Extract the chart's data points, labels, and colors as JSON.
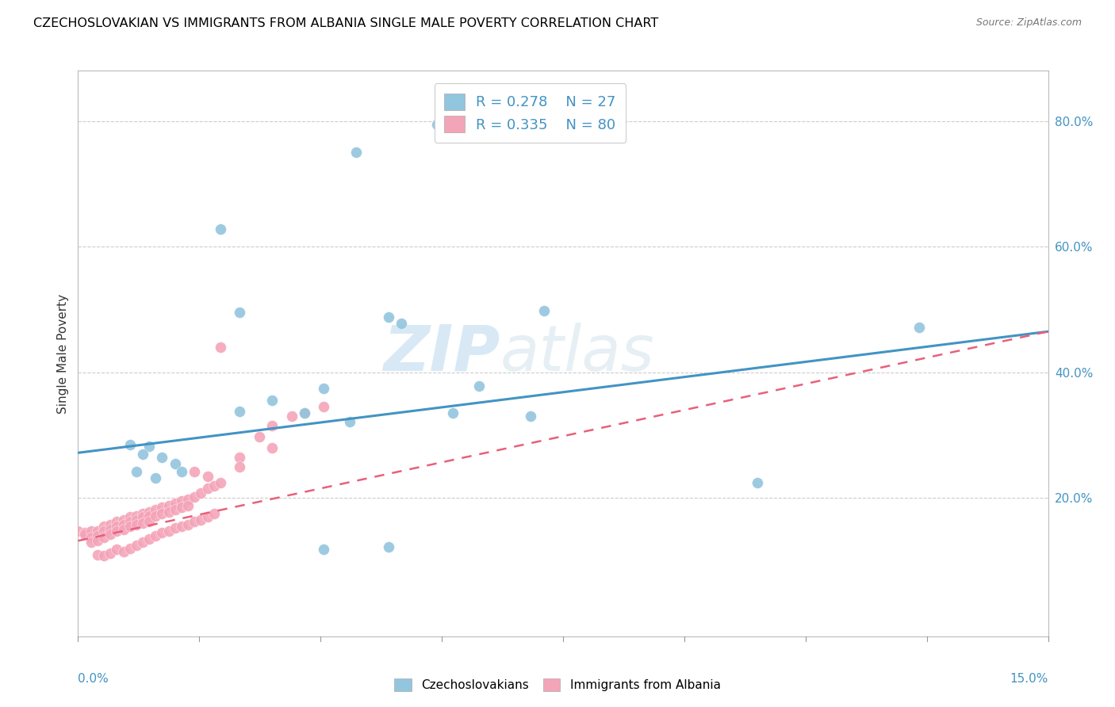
{
  "title": "CZECHOSLOVAKIAN VS IMMIGRANTS FROM ALBANIA SINGLE MALE POVERTY CORRELATION CHART",
  "source": "Source: ZipAtlas.com",
  "ylabel": "Single Male Poverty",
  "right_yticks": [
    "20.0%",
    "40.0%",
    "60.0%",
    "80.0%"
  ],
  "right_ytick_vals": [
    0.2,
    0.4,
    0.6,
    0.8
  ],
  "xmin": 0.0,
  "xmax": 0.15,
  "ymin": -0.02,
  "ymax": 0.88,
  "blue_color": "#92c5de",
  "pink_color": "#f4a4b8",
  "blue_line_color": "#4393c3",
  "pink_line_color": "#e8607a",
  "legend_label1": "Czechoslovakians",
  "legend_label2": "Immigrants from Albania",
  "watermark_zip": "ZIP",
  "watermark_atlas": "atlas",
  "blue_trend_y0": 0.272,
  "blue_trend_y1": 0.465,
  "pink_trend_y0": 0.132,
  "pink_trend_y1": 0.465,
  "blue_x": [
    0.0555,
    0.043,
    0.022,
    0.025,
    0.03,
    0.008,
    0.011,
    0.01,
    0.013,
    0.015,
    0.009,
    0.016,
    0.012,
    0.025,
    0.035,
    0.062,
    0.038,
    0.042,
    0.058,
    0.05,
    0.048,
    0.072,
    0.13,
    0.105,
    0.07,
    0.048,
    0.038
  ],
  "blue_y": [
    0.795,
    0.75,
    0.628,
    0.495,
    0.355,
    0.285,
    0.282,
    0.27,
    0.265,
    0.255,
    0.242,
    0.242,
    0.232,
    0.338,
    0.335,
    0.378,
    0.375,
    0.322,
    0.335,
    0.478,
    0.122,
    0.498,
    0.472,
    0.225,
    0.33,
    0.488,
    0.118
  ],
  "pink_x": [
    0.0,
    0.001,
    0.001,
    0.002,
    0.002,
    0.002,
    0.003,
    0.003,
    0.003,
    0.004,
    0.004,
    0.004,
    0.005,
    0.005,
    0.005,
    0.006,
    0.006,
    0.006,
    0.007,
    0.007,
    0.007,
    0.008,
    0.008,
    0.008,
    0.009,
    0.009,
    0.009,
    0.01,
    0.01,
    0.01,
    0.011,
    0.011,
    0.011,
    0.012,
    0.012,
    0.013,
    0.013,
    0.014,
    0.014,
    0.015,
    0.015,
    0.016,
    0.016,
    0.017,
    0.017,
    0.018,
    0.019,
    0.02,
    0.021,
    0.022,
    0.003,
    0.004,
    0.005,
    0.006,
    0.007,
    0.008,
    0.009,
    0.01,
    0.011,
    0.012,
    0.013,
    0.014,
    0.015,
    0.016,
    0.017,
    0.018,
    0.019,
    0.02,
    0.021,
    0.022,
    0.025,
    0.028,
    0.03,
    0.033,
    0.035,
    0.038,
    0.025,
    0.03,
    0.02,
    0.018
  ],
  "pink_y": [
    0.148,
    0.145,
    0.142,
    0.148,
    0.138,
    0.13,
    0.148,
    0.14,
    0.132,
    0.155,
    0.148,
    0.138,
    0.158,
    0.15,
    0.142,
    0.162,
    0.155,
    0.148,
    0.165,
    0.158,
    0.15,
    0.17,
    0.162,
    0.155,
    0.172,
    0.165,
    0.158,
    0.175,
    0.17,
    0.16,
    0.178,
    0.172,
    0.162,
    0.182,
    0.172,
    0.185,
    0.175,
    0.188,
    0.178,
    0.192,
    0.182,
    0.195,
    0.185,
    0.198,
    0.188,
    0.202,
    0.208,
    0.215,
    0.22,
    0.225,
    0.11,
    0.108,
    0.112,
    0.118,
    0.115,
    0.12,
    0.125,
    0.13,
    0.135,
    0.14,
    0.145,
    0.148,
    0.152,
    0.155,
    0.158,
    0.162,
    0.165,
    0.17,
    0.175,
    0.44,
    0.265,
    0.298,
    0.315,
    0.33,
    0.335,
    0.345,
    0.25,
    0.28,
    0.235,
    0.242
  ]
}
